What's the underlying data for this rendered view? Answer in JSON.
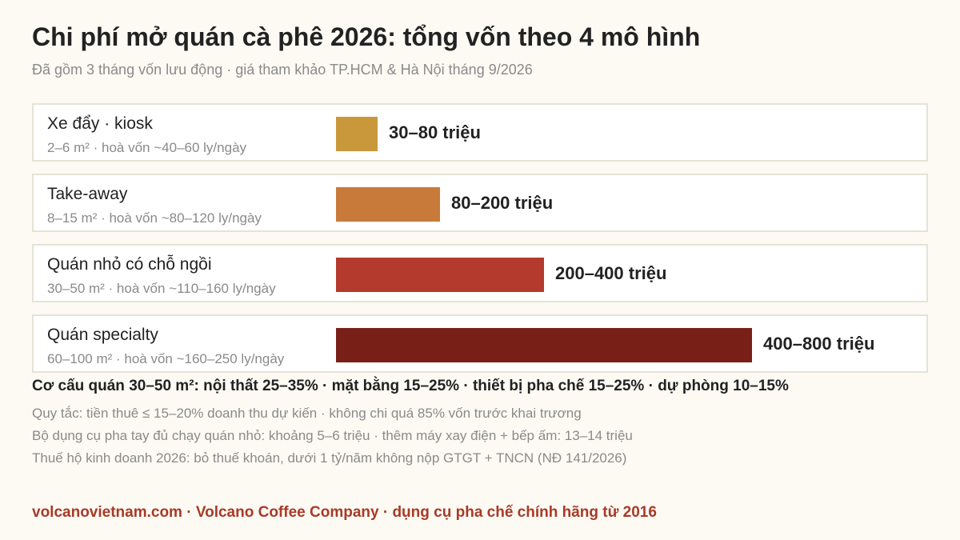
{
  "header": {
    "title": "Chi phí mở quán cà phê 2026: tổng vốn theo 4 mô hình",
    "subtitle": "Đã gồm 3 tháng vốn lưu động · giá tham khảo TP.HCM & Hà Nội tháng 9/2026"
  },
  "chart_data": {
    "type": "bar",
    "orientation": "horizontal",
    "unit": "triệu",
    "categories": [
      "Xe đẩy · kiosk",
      "Take-away",
      "Quán nhỏ có chỗ ngồi",
      "Quán specialty"
    ],
    "details": [
      "2–6 m² · hoà vốn ~40–60 ly/ngày",
      "8–15 m² · hoà vốn ~80–120 ly/ngày",
      "30–50 m² · hoà vốn ~110–160 ly/ngày",
      "60–100 m² · hoà vốn ~160–250 ly/ngày"
    ],
    "series": [
      {
        "values": [
          80,
          200,
          400,
          800
        ],
        "ranges": [
          [
            30,
            80
          ],
          [
            80,
            200
          ],
          [
            200,
            400
          ],
          [
            400,
            800
          ]
        ]
      }
    ],
    "value_labels": [
      "30–80 triệu",
      "80–200 triệu",
      "200–400 triệu",
      "400–800 triệu"
    ],
    "colors": [
      "#c8983a",
      "#c87a3a",
      "#b33a2c",
      "#782018"
    ],
    "xlim": [
      0,
      800
    ],
    "grid": false
  },
  "notes": {
    "structure": "Cơ cấu quán 30–50 m²: nội thất 25–35% · mặt bằng 15–25% · thiết bị pha chế 15–25% · dự phòng 10–15%",
    "rule": "Quy tắc: tiền thuê ≤ 15–20% doanh thu dự kiến · không chi quá 85% vốn trước khai trương",
    "tools": "Bộ dụng cụ pha tay đủ chạy quán nhỏ: khoảng 5–6 triệu · thêm máy xay điện + bếp ấm: 13–14 triệu",
    "tax": "Thuế hộ kinh doanh 2026: bỏ thuế khoán, dưới 1 tỷ/năm không nộp GTGT + TNCN (NĐ 141/2026)"
  },
  "footer": {
    "text": "volcanovietnam.com · Volcano Coffee Company · dụng cụ pha chế chính hãng từ 2016",
    "color": "#a83a26"
  }
}
